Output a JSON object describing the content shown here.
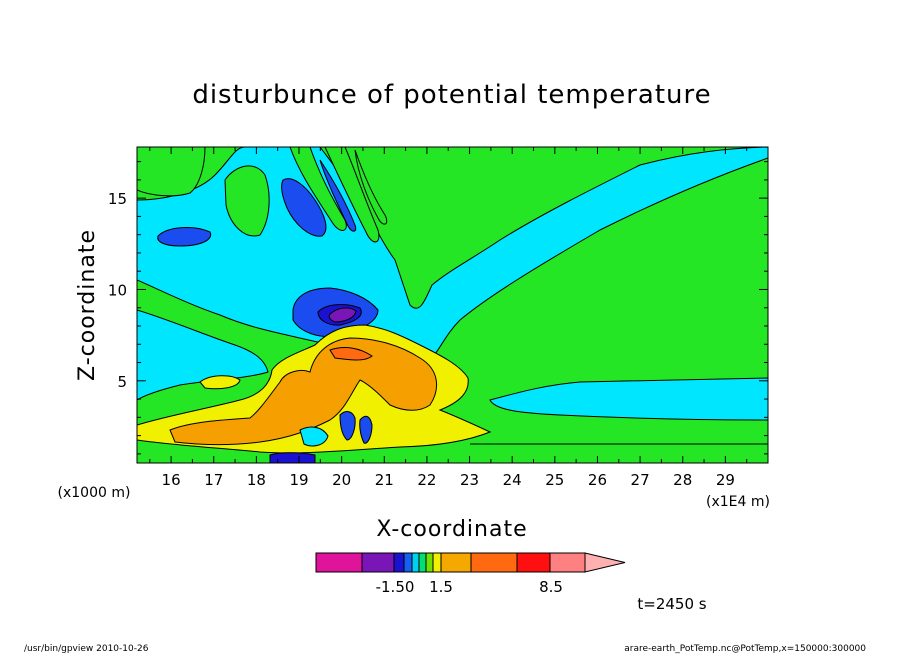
{
  "chart_data": {
    "type": "heatmap",
    "title": "disturbunce of potential temperature",
    "xlabel": "X-coordinate",
    "ylabel": "Z-coordinate",
    "x_unit": "(x1E4 m)",
    "y_unit": "(x1000 m)",
    "xlim": [
      15.2,
      30.0
    ],
    "ylim": [
      0.5,
      17.8
    ],
    "x_ticks": [
      16,
      17,
      18,
      19,
      20,
      21,
      22,
      23,
      24,
      25,
      26,
      27,
      28,
      29
    ],
    "y_ticks": [
      5,
      10,
      15
    ],
    "time_label": "t=2450 s",
    "colorbar": {
      "colors": [
        "#e0149b",
        "#7a16b8",
        "#1a12d0",
        "#1660f0",
        "#00d0f0",
        "#00e070",
        "#70e000",
        "#f0f000",
        "#f5a800",
        "#ff6a10",
        "#ff1010",
        "#ff8080",
        "#ffb0b0"
      ],
      "labels": [
        "-1.50",
        "1.5",
        "8.5"
      ]
    },
    "palette": {
      "background": "#25e625",
      "cyan": "#00e6ff",
      "blue": "#1a4cf0",
      "navy": "#1a12d0",
      "purple": "#7a16b8",
      "yellow": "#f0f000",
      "orange": "#f5a000",
      "green": "#25e625"
    }
  },
  "footer": {
    "left": "/usr/bin/gpview   2010-10-26",
    "right": "arare-earth_PotTemp.nc@PotTemp,x=150000:300000"
  }
}
